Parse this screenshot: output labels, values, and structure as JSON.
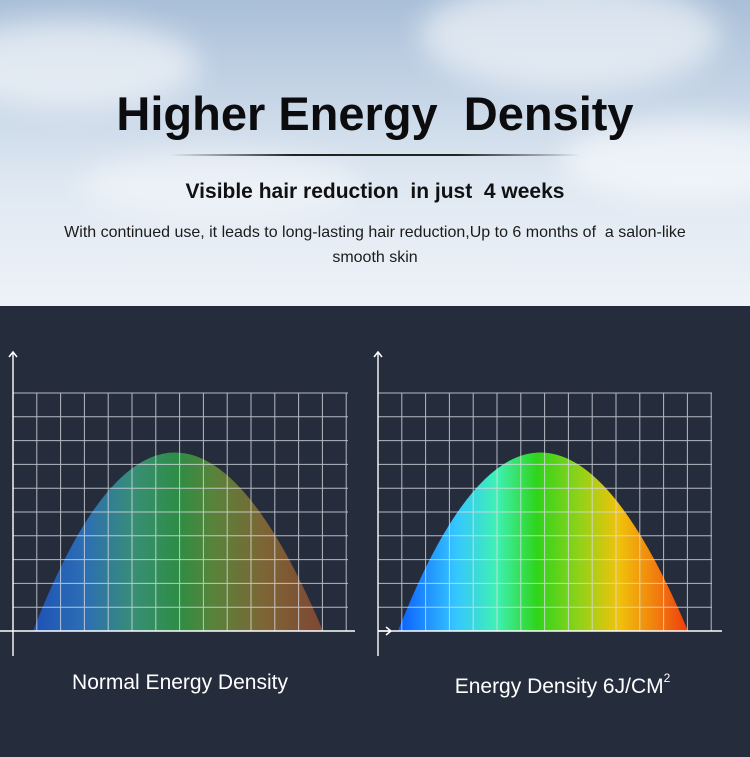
{
  "header": {
    "title": "Higher Energy  Density",
    "subtitle": "Visible hair reduction  in just  4 weeks",
    "description": "With continued use, it leads to long-lasting hair reduction,Up to 6 months of  a salon-like smooth skin"
  },
  "charts": {
    "left": {
      "caption": "Normal Energy Density",
      "style": "muted spectrum",
      "colors": [
        "#1c57c8",
        "#2f9a46",
        "#8a5a33"
      ]
    },
    "right": {
      "caption_text": "Energy Density 6J/CM",
      "caption_superscript": "2",
      "style": "vivid spectrum",
      "colors": [
        "#0a5cff",
        "#35d9ff",
        "#2fd41a",
        "#f0c30a",
        "#ee3d0c"
      ]
    }
  },
  "colors": {
    "panel_background": "#252d3c",
    "grid_lines": "#d9dde4",
    "headline_text": "#0c0c0e"
  }
}
